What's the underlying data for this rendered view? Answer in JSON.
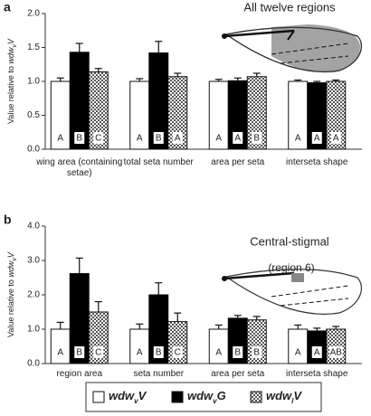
{
  "chart_data": [
    {
      "type": "bar",
      "panel_label": "a",
      "title": "All twelve regions",
      "ylabel": [
        "Value relative to ",
        "wdw",
        "v",
        "V"
      ],
      "categories": [
        "wing area (containing setae)",
        "total seta number",
        "area per seta",
        "interseta shape"
      ],
      "series": [
        {
          "name": "wdwvV",
          "color": "#ffffff",
          "values": [
            1.0,
            1.0,
            1.0,
            1.0
          ],
          "errors": [
            0.05,
            0.04,
            0.03,
            0.02
          ],
          "labels": [
            "A",
            "A",
            "A",
            "A"
          ]
        },
        {
          "name": "wdwvG",
          "color": "#000000",
          "values": [
            1.43,
            1.42,
            1.01,
            0.98
          ],
          "errors": [
            0.13,
            0.17,
            0.04,
            0.02
          ],
          "labels": [
            "B",
            "B",
            "A",
            "A"
          ]
        },
        {
          "name": "wdwlV",
          "color": "#555555",
          "pattern": "checker",
          "values": [
            1.14,
            1.07,
            1.07,
            1.0
          ],
          "errors": [
            0.05,
            0.05,
            0.05,
            0.02
          ],
          "labels": [
            "C",
            "A",
            "B",
            "A"
          ]
        }
      ],
      "ylim": [
        0,
        2
      ],
      "yticks": [
        {
          "value": 0,
          "label": "0.0"
        },
        {
          "value": 0.5,
          "label": "0.5"
        },
        {
          "value": 1,
          "label": "1.0"
        },
        {
          "value": 1.5,
          "label": "1.5"
        },
        {
          "value": 2,
          "label": "2.0"
        }
      ]
    },
    {
      "type": "bar",
      "panel_label": "b",
      "title": "Central-stigmal",
      "subtitle": "(region 6)",
      "ylabel": [
        "Value relative to ",
        "wdw",
        "v",
        "V"
      ],
      "categories": [
        "region area",
        "seta number",
        "area per seta",
        "interseta shape"
      ],
      "series": [
        {
          "color": "#ffffff",
          "values": [
            1.0,
            1.0,
            1.0,
            1.0
          ],
          "errors": [
            0.2,
            0.15,
            0.12,
            0.12
          ],
          "labels": [
            "A",
            "A",
            "A",
            "A"
          ]
        },
        {
          "color": "#000000",
          "values": [
            2.62,
            2.0,
            1.32,
            0.95
          ],
          "errors": [
            0.45,
            0.35,
            0.08,
            0.08
          ],
          "labels": [
            "B",
            "B",
            "B",
            "A"
          ]
        },
        {
          "color": "#555555",
          "pattern": "checker",
          "values": [
            1.5,
            1.22,
            1.27,
            1.0
          ],
          "errors": [
            0.3,
            0.25,
            0.1,
            0.08
          ],
          "labels": [
            "C",
            "C",
            "B",
            "AB"
          ]
        }
      ],
      "ylim": [
        0,
        4
      ],
      "yticks": [
        {
          "value": 0,
          "label": "0.0"
        },
        {
          "value": 1,
          "label": "1.0"
        },
        {
          "value": 2,
          "label": "2.0"
        },
        {
          "value": 3,
          "label": "3.0"
        },
        {
          "value": 4,
          "label": "4.0"
        }
      ]
    }
  ]
}
